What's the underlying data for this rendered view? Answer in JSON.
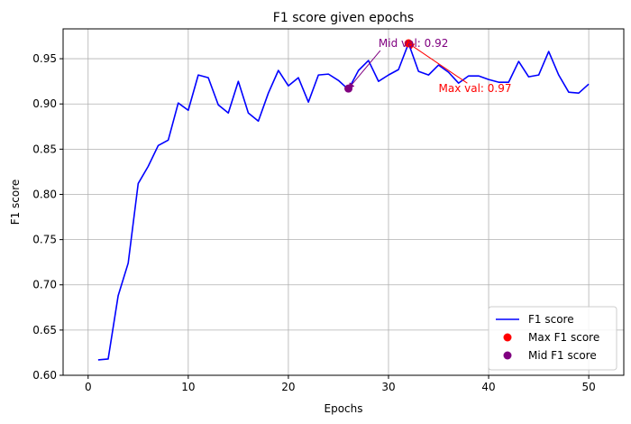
{
  "chart_data": {
    "type": "line",
    "title": "F1 score given epochs",
    "xlabel": "Epochs",
    "ylabel": "F1 score",
    "xlim": [
      -2.5,
      53.5
    ],
    "ylim": [
      0.6,
      0.983
    ],
    "xticks": [
      0,
      10,
      20,
      30,
      40,
      50
    ],
    "yticks": [
      0.6,
      0.65,
      0.7,
      0.75,
      0.8,
      0.85,
      0.9,
      0.95
    ],
    "ytick_labels": [
      "0.60",
      "0.65",
      "0.70",
      "0.75",
      "0.80",
      "0.85",
      "0.90",
      "0.95"
    ],
    "grid": true,
    "legend_position": "lower-right",
    "series": [
      {
        "name": "F1 score",
        "color": "#0000ff",
        "x": [
          1,
          2,
          3,
          4,
          5,
          6,
          7,
          8,
          9,
          10,
          11,
          12,
          13,
          14,
          15,
          16,
          17,
          18,
          19,
          20,
          21,
          22,
          23,
          24,
          25,
          26,
          27,
          28,
          29,
          30,
          31,
          32,
          33,
          34,
          35,
          36,
          37,
          38,
          39,
          40,
          41,
          42,
          43,
          44,
          45,
          46,
          47,
          48,
          49,
          50
        ],
        "y": [
          0.617,
          0.618,
          0.688,
          0.724,
          0.812,
          0.831,
          0.854,
          0.86,
          0.901,
          0.893,
          0.932,
          0.929,
          0.899,
          0.89,
          0.925,
          0.89,
          0.881,
          0.912,
          0.937,
          0.92,
          0.929,
          0.902,
          0.932,
          0.933,
          0.926,
          0.916,
          0.937,
          0.948,
          0.925,
          0.932,
          0.938,
          0.967,
          0.936,
          0.932,
          0.943,
          0.935,
          0.923,
          0.931,
          0.931,
          0.927,
          0.924,
          0.924,
          0.947,
          0.93,
          0.932,
          0.958,
          0.932,
          0.913,
          0.912,
          0.922
        ]
      }
    ],
    "points": [
      {
        "name": "Max F1 score",
        "color": "#ff0000",
        "x": 32,
        "y": 0.967
      },
      {
        "name": "Mid F1 score",
        "color": "#800080",
        "x": 26,
        "y": 0.917
      }
    ],
    "annotations": [
      {
        "text": "Max val: 0.97",
        "color": "#ff0000",
        "x": 35,
        "y": 0.913,
        "arrow_to": [
          32,
          0.967
        ]
      },
      {
        "text": "Mid val: 0.92",
        "color": "#800080",
        "x": 29,
        "y": 0.963,
        "arrow_to": [
          26,
          0.917
        ]
      }
    ]
  }
}
